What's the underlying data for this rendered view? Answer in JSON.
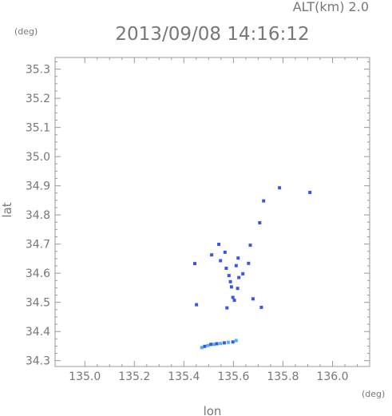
{
  "chart_data": {
    "type": "scatter",
    "header_right": "ALT(km) 2.0",
    "title": "2013/09/08 14:16:12",
    "xlabel": "lon",
    "ylabel": "lat",
    "x_unit": "(deg)",
    "y_unit": "(deg)",
    "xlim": [
      134.88,
      136.15
    ],
    "ylim": [
      34.28,
      35.34
    ],
    "x_ticks": [
      "135.0",
      "135.2",
      "135.4",
      "135.6",
      "135.8",
      "136.0"
    ],
    "y_ticks": [
      "34.3",
      "34.4",
      "34.5",
      "34.6",
      "34.7",
      "34.8",
      "34.9",
      "35.0",
      "35.1",
      "35.2",
      "35.3"
    ],
    "grid": false,
    "colors": {
      "echo": "#3a55e8",
      "echo_light": "#4fb3ef"
    },
    "points": [
      {
        "x": 135.444,
        "y": 34.633
      },
      {
        "x": 135.451,
        "y": 34.492
      },
      {
        "x": 135.512,
        "y": 34.663
      },
      {
        "x": 135.541,
        "y": 34.699
      },
      {
        "x": 135.548,
        "y": 34.643
      },
      {
        "x": 135.566,
        "y": 34.672
      },
      {
        "x": 135.571,
        "y": 34.617
      },
      {
        "x": 135.582,
        "y": 34.592
      },
      {
        "x": 135.588,
        "y": 34.571
      },
      {
        "x": 135.592,
        "y": 34.553
      },
      {
        "x": 135.598,
        "y": 34.517
      },
      {
        "x": 135.604,
        "y": 34.507
      },
      {
        "x": 135.574,
        "y": 34.481
      },
      {
        "x": 135.611,
        "y": 34.626
      },
      {
        "x": 135.619,
        "y": 34.652
      },
      {
        "x": 135.622,
        "y": 34.585
      },
      {
        "x": 135.617,
        "y": 34.548
      },
      {
        "x": 135.638,
        "y": 34.598
      },
      {
        "x": 135.661,
        "y": 34.634
      },
      {
        "x": 135.668,
        "y": 34.696
      },
      {
        "x": 135.679,
        "y": 34.512
      },
      {
        "x": 135.706,
        "y": 34.773
      },
      {
        "x": 135.713,
        "y": 34.483
      },
      {
        "x": 135.722,
        "y": 34.848
      },
      {
        "x": 135.786,
        "y": 34.893
      },
      {
        "x": 135.909,
        "y": 34.877
      },
      {
        "x": 135.472,
        "y": 34.345
      },
      {
        "x": 135.484,
        "y": 34.349
      },
      {
        "x": 135.497,
        "y": 34.352
      },
      {
        "x": 135.509,
        "y": 34.356
      },
      {
        "x": 135.521,
        "y": 34.356
      },
      {
        "x": 135.533,
        "y": 34.358
      },
      {
        "x": 135.548,
        "y": 34.359
      },
      {
        "x": 135.563,
        "y": 34.361
      },
      {
        "x": 135.579,
        "y": 34.363
      },
      {
        "x": 135.598,
        "y": 34.364
      },
      {
        "x": 135.611,
        "y": 34.369
      }
    ]
  }
}
